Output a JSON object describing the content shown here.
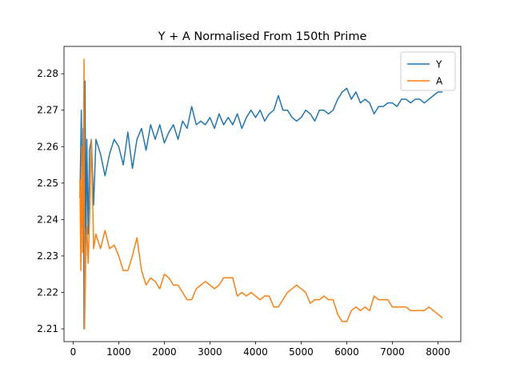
{
  "chart_data": {
    "type": "line",
    "title": "Y + A Normalised From 150th Prime",
    "xlabel": "",
    "ylabel": "",
    "xlim": [
      -200,
      8500
    ],
    "ylim": [
      2.2065,
      2.2875
    ],
    "xticks": [
      0,
      1000,
      2000,
      3000,
      4000,
      5000,
      6000,
      7000,
      8000
    ],
    "xtick_labels": [
      "0",
      "1000",
      "2000",
      "3000",
      "4000",
      "5000",
      "6000",
      "7000",
      "8000"
    ],
    "yticks": [
      2.21,
      2.22,
      2.23,
      2.24,
      2.25,
      2.26,
      2.27,
      2.28
    ],
    "ytick_labels": [
      "2.21",
      "2.22",
      "2.23",
      "2.24",
      "2.25",
      "2.26",
      "2.27",
      "2.28"
    ],
    "grid": false,
    "legend_position": "top-right",
    "series": [
      {
        "name": "Y",
        "color": "#1f77b4",
        "points": [
          [
            150,
            2.246
          ],
          [
            180,
            2.27
          ],
          [
            200,
            2.238
          ],
          [
            220,
            2.265
          ],
          [
            240,
            2.21
          ],
          [
            260,
            2.278
          ],
          [
            280,
            2.23
          ],
          [
            300,
            2.262
          ],
          [
            330,
            2.236
          ],
          [
            360,
            2.259
          ],
          [
            400,
            2.262
          ],
          [
            450,
            2.244
          ],
          [
            500,
            2.262
          ],
          [
            600,
            2.258
          ],
          [
            700,
            2.252
          ],
          [
            800,
            2.258
          ],
          [
            900,
            2.262
          ],
          [
            1000,
            2.26
          ],
          [
            1100,
            2.255
          ],
          [
            1200,
            2.264
          ],
          [
            1300,
            2.254
          ],
          [
            1400,
            2.262
          ],
          [
            1500,
            2.265
          ],
          [
            1600,
            2.259
          ],
          [
            1700,
            2.266
          ],
          [
            1800,
            2.262
          ],
          [
            1900,
            2.266
          ],
          [
            2000,
            2.261
          ],
          [
            2100,
            2.264
          ],
          [
            2200,
            2.266
          ],
          [
            2300,
            2.262
          ],
          [
            2400,
            2.267
          ],
          [
            2500,
            2.265
          ],
          [
            2600,
            2.271
          ],
          [
            2700,
            2.266
          ],
          [
            2800,
            2.267
          ],
          [
            2900,
            2.266
          ],
          [
            3000,
            2.268
          ],
          [
            3100,
            2.265
          ],
          [
            3200,
            2.269
          ],
          [
            3300,
            2.266
          ],
          [
            3400,
            2.268
          ],
          [
            3500,
            2.266
          ],
          [
            3600,
            2.269
          ],
          [
            3700,
            2.265
          ],
          [
            3800,
            2.268
          ],
          [
            3900,
            2.27
          ],
          [
            4000,
            2.268
          ],
          [
            4100,
            2.27
          ],
          [
            4200,
            2.267
          ],
          [
            4300,
            2.269
          ],
          [
            4400,
            2.27
          ],
          [
            4500,
            2.274
          ],
          [
            4600,
            2.27
          ],
          [
            4700,
            2.27
          ],
          [
            4800,
            2.268
          ],
          [
            4900,
            2.267
          ],
          [
            5000,
            2.268
          ],
          [
            5100,
            2.27
          ],
          [
            5200,
            2.269
          ],
          [
            5300,
            2.267
          ],
          [
            5400,
            2.27
          ],
          [
            5500,
            2.27
          ],
          [
            5600,
            2.269
          ],
          [
            5700,
            2.27
          ],
          [
            5800,
            2.273
          ],
          [
            5900,
            2.275
          ],
          [
            6000,
            2.276
          ],
          [
            6100,
            2.273
          ],
          [
            6200,
            2.275
          ],
          [
            6300,
            2.272
          ],
          [
            6400,
            2.273
          ],
          [
            6500,
            2.272
          ],
          [
            6600,
            2.269
          ],
          [
            6700,
            2.271
          ],
          [
            6800,
            2.271
          ],
          [
            6900,
            2.272
          ],
          [
            7000,
            2.272
          ],
          [
            7100,
            2.271
          ],
          [
            7200,
            2.273
          ],
          [
            7300,
            2.273
          ],
          [
            7400,
            2.272
          ],
          [
            7500,
            2.273
          ],
          [
            7600,
            2.273
          ],
          [
            7700,
            2.272
          ],
          [
            7800,
            2.273
          ],
          [
            7900,
            2.274
          ],
          [
            8000,
            2.275
          ],
          [
            8100,
            2.275
          ]
        ]
      },
      {
        "name": "A",
        "color": "#ff7f0e",
        "points": [
          [
            150,
            2.251
          ],
          [
            170,
            2.226
          ],
          [
            190,
            2.26
          ],
          [
            210,
            2.231
          ],
          [
            240,
            2.284
          ],
          [
            250,
            2.21
          ],
          [
            280,
            2.232
          ],
          [
            300,
            2.238
          ],
          [
            330,
            2.228
          ],
          [
            360,
            2.24
          ],
          [
            400,
            2.262
          ],
          [
            450,
            2.232
          ],
          [
            500,
            2.236
          ],
          [
            600,
            2.232
          ],
          [
            700,
            2.237
          ],
          [
            800,
            2.232
          ],
          [
            900,
            2.233
          ],
          [
            1000,
            2.23
          ],
          [
            1100,
            2.226
          ],
          [
            1200,
            2.226
          ],
          [
            1300,
            2.23
          ],
          [
            1400,
            2.235
          ],
          [
            1500,
            2.226
          ],
          [
            1600,
            2.222
          ],
          [
            1700,
            2.224
          ],
          [
            1800,
            2.223
          ],
          [
            1900,
            2.221
          ],
          [
            2000,
            2.225
          ],
          [
            2100,
            2.224
          ],
          [
            2200,
            2.222
          ],
          [
            2300,
            2.222
          ],
          [
            2400,
            2.22
          ],
          [
            2500,
            2.218
          ],
          [
            2600,
            2.218
          ],
          [
            2700,
            2.221
          ],
          [
            2800,
            2.222
          ],
          [
            2900,
            2.223
          ],
          [
            3000,
            2.222
          ],
          [
            3100,
            2.221
          ],
          [
            3200,
            2.222
          ],
          [
            3300,
            2.224
          ],
          [
            3400,
            2.224
          ],
          [
            3500,
            2.224
          ],
          [
            3600,
            2.219
          ],
          [
            3700,
            2.22
          ],
          [
            3800,
            2.219
          ],
          [
            3900,
            2.22
          ],
          [
            4000,
            2.219
          ],
          [
            4100,
            2.218
          ],
          [
            4200,
            2.219
          ],
          [
            4300,
            2.219
          ],
          [
            4400,
            2.216
          ],
          [
            4500,
            2.216
          ],
          [
            4600,
            2.218
          ],
          [
            4700,
            2.22
          ],
          [
            4800,
            2.221
          ],
          [
            4900,
            2.222
          ],
          [
            5000,
            2.221
          ],
          [
            5100,
            2.22
          ],
          [
            5200,
            2.217
          ],
          [
            5300,
            2.218
          ],
          [
            5400,
            2.218
          ],
          [
            5500,
            2.219
          ],
          [
            5600,
            2.218
          ],
          [
            5700,
            2.218
          ],
          [
            5800,
            2.214
          ],
          [
            5900,
            2.212
          ],
          [
            6000,
            2.212
          ],
          [
            6100,
            2.215
          ],
          [
            6200,
            2.216
          ],
          [
            6300,
            2.215
          ],
          [
            6400,
            2.216
          ],
          [
            6500,
            2.215
          ],
          [
            6600,
            2.219
          ],
          [
            6700,
            2.218
          ],
          [
            6800,
            2.218
          ],
          [
            6900,
            2.218
          ],
          [
            7000,
            2.216
          ],
          [
            7100,
            2.216
          ],
          [
            7200,
            2.216
          ],
          [
            7300,
            2.216
          ],
          [
            7400,
            2.215
          ],
          [
            7500,
            2.215
          ],
          [
            7600,
            2.215
          ],
          [
            7700,
            2.215
          ],
          [
            7800,
            2.216
          ],
          [
            7900,
            2.215
          ],
          [
            8000,
            2.214
          ],
          [
            8100,
            2.213
          ]
        ]
      }
    ]
  }
}
